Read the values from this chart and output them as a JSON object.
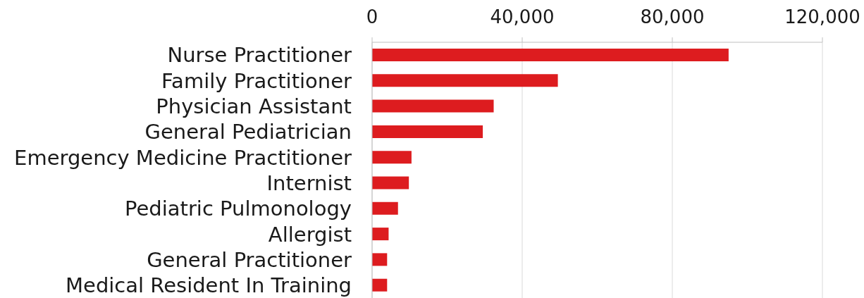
{
  "chart_data": {
    "type": "bar",
    "orientation": "horizontal",
    "categories": [
      "Nurse Practitioner",
      "Family Practitioner",
      "Physician Assistant",
      "General Pediatrician",
      "Emergency Medicine Practitioner",
      "Internist",
      "Pediatric Pulmonology",
      "Allergist",
      "General Practitioner",
      "Medical Resident In Training"
    ],
    "values": [
      95000,
      49500,
      32400,
      29500,
      10500,
      9800,
      6900,
      4400,
      4000,
      4000
    ],
    "color": "#dd1c1f",
    "xlim": [
      0,
      120000
    ],
    "xticks": [
      {
        "value": 0,
        "label": "0"
      },
      {
        "value": 40000,
        "label": "40,000"
      },
      {
        "value": 80000,
        "label": "80,000"
      },
      {
        "value": 120000,
        "label": "120,000"
      }
    ],
    "grid": "x"
  }
}
